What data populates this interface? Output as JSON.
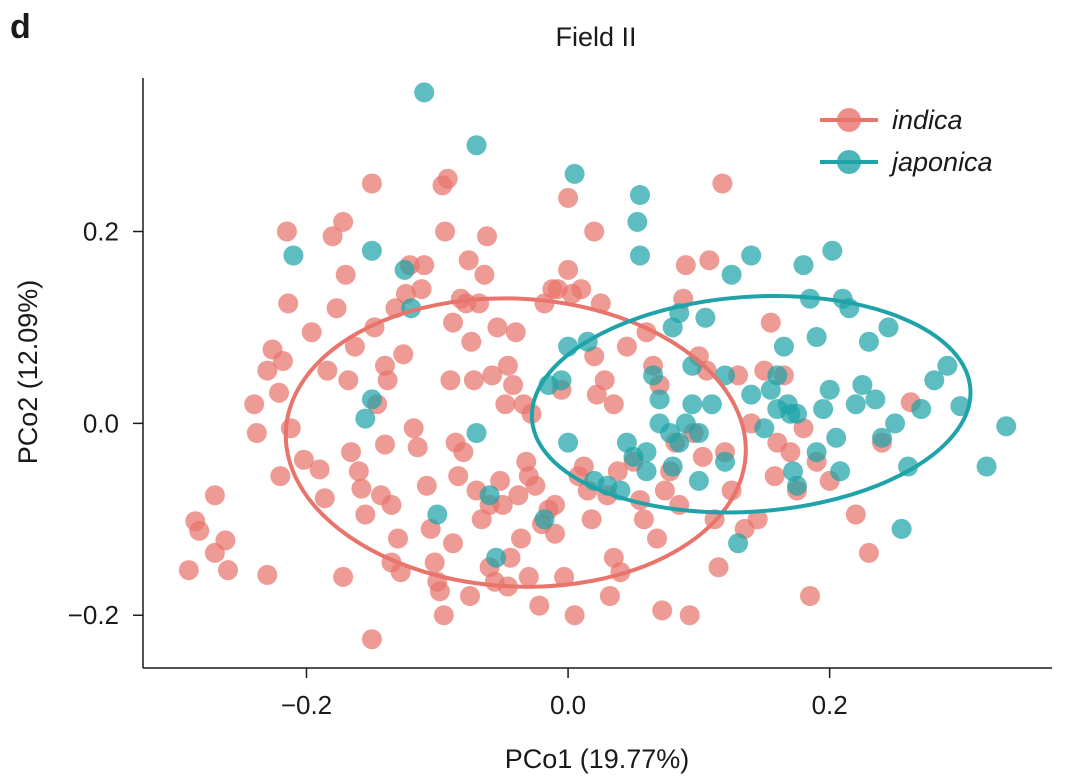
{
  "panel_label": "d",
  "chart_data": {
    "type": "scatter",
    "title": "Field II",
    "xlabel": "PCo1 (19.77%)",
    "ylabel": "PCo2 (12.09%)",
    "xlim": [
      -0.325,
      0.37
    ],
    "ylim": [
      -0.255,
      0.36
    ],
    "xticks": [
      -0.2,
      0.0,
      0.2
    ],
    "yticks": [
      -0.2,
      0.0,
      0.2
    ],
    "xtick_labels": [
      "−0.2",
      "0.0",
      "0.2"
    ],
    "ytick_labels": [
      "−0.2",
      "0.0",
      "0.2"
    ],
    "legend_position": "top-right",
    "series": [
      {
        "name": "indica",
        "color": "#e8746c",
        "ellipse": {
          "cx": -0.04,
          "cy": -0.02,
          "rx": 0.176,
          "ry": 0.15,
          "angle": 3
        },
        "points": [
          [
            -0.29,
            -0.153
          ],
          [
            -0.285,
            -0.102
          ],
          [
            -0.282,
            -0.112
          ],
          [
            -0.27,
            -0.135
          ],
          [
            -0.262,
            -0.122
          ],
          [
            -0.26,
            -0.153
          ],
          [
            -0.27,
            -0.075
          ],
          [
            -0.24,
            0.02
          ],
          [
            -0.238,
            -0.01
          ],
          [
            -0.23,
            0.055
          ],
          [
            -0.226,
            0.077
          ],
          [
            -0.221,
            0.032
          ],
          [
            -0.22,
            -0.055
          ],
          [
            -0.218,
            0.065
          ],
          [
            -0.215,
            0.2
          ],
          [
            -0.214,
            0.125
          ],
          [
            -0.212,
            -0.005
          ],
          [
            -0.23,
            -0.158
          ],
          [
            -0.202,
            -0.038
          ],
          [
            -0.196,
            0.095
          ],
          [
            -0.19,
            -0.048
          ],
          [
            -0.186,
            -0.078
          ],
          [
            -0.184,
            0.055
          ],
          [
            -0.18,
            0.195
          ],
          [
            -0.177,
            0.12
          ],
          [
            -0.172,
            0.21
          ],
          [
            -0.17,
            0.155
          ],
          [
            -0.168,
            0.045
          ],
          [
            -0.166,
            -0.03
          ],
          [
            -0.163,
            0.08
          ],
          [
            -0.16,
            -0.05
          ],
          [
            -0.158,
            -0.068
          ],
          [
            -0.155,
            -0.095
          ],
          [
            -0.172,
            -0.16
          ],
          [
            -0.15,
            0.25
          ],
          [
            -0.148,
            0.1
          ],
          [
            -0.146,
            0.02
          ],
          [
            -0.143,
            -0.075
          ],
          [
            -0.14,
            0.06
          ],
          [
            -0.138,
            0.045
          ],
          [
            -0.135,
            -0.085
          ],
          [
            -0.132,
            0.12
          ],
          [
            -0.13,
            -0.12
          ],
          [
            -0.128,
            -0.155
          ],
          [
            -0.126,
            0.072
          ],
          [
            -0.124,
            0.135
          ],
          [
            -0.121,
            0.165
          ],
          [
            -0.118,
            -0.005
          ],
          [
            -0.115,
            -0.025
          ],
          [
            -0.112,
            0.14
          ],
          [
            -0.11,
            0.165
          ],
          [
            -0.108,
            -0.065
          ],
          [
            -0.105,
            -0.11
          ],
          [
            -0.102,
            -0.145
          ],
          [
            -0.1,
            -0.165
          ],
          [
            -0.098,
            -0.175
          ],
          [
            -0.096,
            0.248
          ],
          [
            -0.094,
            0.2
          ],
          [
            -0.092,
            0.255
          ],
          [
            -0.09,
            0.045
          ],
          [
            -0.088,
            0.105
          ],
          [
            -0.086,
            -0.02
          ],
          [
            -0.084,
            -0.055
          ],
          [
            -0.082,
            0.13
          ],
          [
            -0.08,
            -0.03
          ],
          [
            -0.078,
            0.125
          ],
          [
            -0.076,
            0.17
          ],
          [
            -0.074,
            0.085
          ],
          [
            -0.072,
            0.045
          ],
          [
            -0.07,
            -0.07
          ],
          [
            -0.068,
            0.125
          ],
          [
            -0.066,
            -0.1
          ],
          [
            -0.064,
            0.155
          ],
          [
            -0.062,
            0.195
          ],
          [
            -0.06,
            -0.15
          ],
          [
            -0.058,
            0.05
          ],
          [
            -0.056,
            -0.165
          ],
          [
            -0.054,
            0.1
          ],
          [
            -0.052,
            -0.06
          ],
          [
            -0.05,
            -0.085
          ],
          [
            -0.048,
            0.02
          ],
          [
            -0.046,
            0.06
          ],
          [
            -0.044,
            -0.14
          ],
          [
            -0.042,
            0.04
          ],
          [
            -0.04,
            0.095
          ],
          [
            -0.038,
            -0.075
          ],
          [
            -0.036,
            -0.12
          ],
          [
            -0.034,
            0.02
          ],
          [
            -0.032,
            -0.04
          ],
          [
            -0.03,
            -0.055
          ],
          [
            -0.028,
            0.01
          ],
          [
            -0.025,
            -0.065
          ],
          [
            -0.022,
            -0.19
          ],
          [
            -0.02,
            -0.105
          ],
          [
            -0.018,
            0.125
          ],
          [
            -0.015,
            -0.09
          ],
          [
            -0.012,
            0.14
          ],
          [
            -0.01,
            -0.085
          ],
          [
            -0.008,
            0.14
          ],
          [
            -0.005,
            0.035
          ],
          [
            -0.003,
            -0.16
          ],
          [
            0.0,
            0.16
          ],
          [
            0.003,
            0.135
          ],
          [
            0.005,
            -0.2
          ],
          [
            0.008,
            -0.055
          ],
          [
            0.01,
            0.14
          ],
          [
            0.012,
            -0.045
          ],
          [
            0.015,
            -0.07
          ],
          [
            0.018,
            -0.1
          ],
          [
            0.02,
            0.07
          ],
          [
            0.022,
            0.03
          ],
          [
            0.025,
            0.125
          ],
          [
            0.028,
            0.045
          ],
          [
            0.03,
            -0.075
          ],
          [
            0.032,
            -0.18
          ],
          [
            0.035,
            0.02
          ],
          [
            0.038,
            -0.05
          ],
          [
            0.04,
            -0.155
          ],
          [
            -0.14,
            -0.022
          ],
          [
            -0.135,
            -0.145
          ],
          [
            -0.088,
            -0.125
          ],
          [
            -0.075,
            -0.18
          ],
          [
            -0.06,
            -0.085
          ],
          [
            -0.03,
            -0.16
          ],
          [
            0.0,
            0.235
          ],
          [
            0.02,
            0.2
          ],
          [
            0.045,
            0.08
          ],
          [
            0.05,
            -0.04
          ],
          [
            0.055,
            -0.08
          ],
          [
            0.058,
            -0.1
          ],
          [
            0.06,
            0.095
          ],
          [
            0.065,
            0.06
          ],
          [
            0.068,
            -0.12
          ],
          [
            0.07,
            0.04
          ],
          [
            0.074,
            -0.07
          ],
          [
            0.078,
            -0.05
          ],
          [
            0.082,
            -0.02
          ],
          [
            0.085,
            -0.085
          ],
          [
            0.088,
            0.13
          ],
          [
            0.09,
            0.165
          ],
          [
            0.093,
            -0.2
          ],
          [
            0.096,
            -0.01
          ],
          [
            0.1,
            0.07
          ],
          [
            0.103,
            -0.035
          ],
          [
            0.106,
            0.055
          ],
          [
            0.108,
            0.17
          ],
          [
            0.112,
            -0.1
          ],
          [
            0.115,
            -0.15
          ],
          [
            0.118,
            0.25
          ],
          [
            0.12,
            -0.03
          ],
          [
            0.125,
            -0.07
          ],
          [
            0.13,
            0.05
          ],
          [
            0.135,
            -0.11
          ],
          [
            0.14,
            0.0
          ],
          [
            0.145,
            -0.1
          ],
          [
            0.15,
            0.055
          ],
          [
            0.155,
            0.105
          ],
          [
            0.158,
            -0.055
          ],
          [
            0.16,
            -0.02
          ],
          [
            0.165,
            0.05
          ],
          [
            0.17,
            -0.03
          ],
          [
            0.175,
            -0.07
          ],
          [
            0.18,
            -0.005
          ],
          [
            0.185,
            -0.18
          ],
          [
            0.19,
            -0.04
          ],
          [
            0.2,
            -0.06
          ],
          [
            0.22,
            -0.095
          ],
          [
            0.23,
            -0.135
          ],
          [
            0.24,
            -0.02
          ],
          [
            0.262,
            0.022
          ],
          [
            -0.15,
            -0.225
          ],
          [
            -0.095,
            -0.2
          ],
          [
            0.072,
            -0.195
          ],
          [
            0.035,
            -0.14
          ],
          [
            -0.01,
            -0.115
          ],
          [
            -0.046,
            -0.17
          ]
        ]
      },
      {
        "name": "japonica",
        "color": "#1fa3a8",
        "ellipse": {
          "cx": 0.14,
          "cy": 0.02,
          "rx": 0.168,
          "ry": 0.112,
          "angle": -4
        },
        "points": [
          [
            -0.11,
            0.345
          ],
          [
            -0.07,
            0.29
          ],
          [
            -0.21,
            0.175
          ],
          [
            -0.15,
            0.18
          ],
          [
            -0.125,
            0.16
          ],
          [
            -0.12,
            0.12
          ],
          [
            -0.15,
            0.025
          ],
          [
            -0.155,
            0.005
          ],
          [
            -0.07,
            -0.01
          ],
          [
            -0.1,
            -0.095
          ],
          [
            -0.06,
            -0.075
          ],
          [
            -0.055,
            -0.14
          ],
          [
            -0.018,
            -0.1
          ],
          [
            0.005,
            0.26
          ],
          [
            0.055,
            0.238
          ],
          [
            0.053,
            0.21
          ],
          [
            0.055,
            0.175
          ],
          [
            0.0,
            0.08
          ],
          [
            0.015,
            0.085
          ],
          [
            -0.015,
            0.04
          ],
          [
            0.0,
            -0.02
          ],
          [
            0.02,
            -0.06
          ],
          [
            0.04,
            -0.07
          ],
          [
            0.05,
            -0.035
          ],
          [
            0.06,
            -0.03
          ],
          [
            0.065,
            0.05
          ],
          [
            0.07,
            0.025
          ],
          [
            0.08,
            0.1
          ],
          [
            0.085,
            0.115
          ],
          [
            0.09,
            0.0
          ],
          [
            0.095,
            0.02
          ],
          [
            0.1,
            -0.01
          ],
          [
            0.105,
            0.11
          ],
          [
            0.11,
            0.02
          ],
          [
            0.12,
            0.05
          ],
          [
            0.125,
            0.155
          ],
          [
            0.13,
            -0.125
          ],
          [
            0.14,
            0.175
          ],
          [
            0.15,
            -0.005
          ],
          [
            0.155,
            0.035
          ],
          [
            0.16,
            0.05
          ],
          [
            0.165,
            0.08
          ],
          [
            0.168,
            0.02
          ],
          [
            0.17,
            0.01
          ],
          [
            0.172,
            -0.05
          ],
          [
            0.175,
            -0.065
          ],
          [
            0.18,
            0.165
          ],
          [
            0.185,
            0.13
          ],
          [
            0.19,
            0.09
          ],
          [
            0.195,
            0.015
          ],
          [
            0.2,
            0.035
          ],
          [
            0.202,
            0.18
          ],
          [
            0.205,
            -0.015
          ],
          [
            0.208,
            -0.05
          ],
          [
            0.21,
            0.13
          ],
          [
            0.215,
            0.12
          ],
          [
            0.22,
            0.02
          ],
          [
            0.225,
            0.04
          ],
          [
            0.23,
            0.085
          ],
          [
            0.235,
            0.025
          ],
          [
            0.24,
            -0.015
          ],
          [
            0.245,
            0.1
          ],
          [
            0.25,
            0.0
          ],
          [
            0.255,
            -0.11
          ],
          [
            0.26,
            -0.045
          ],
          [
            0.27,
            0.015
          ],
          [
            0.28,
            0.045
          ],
          [
            0.29,
            0.06
          ],
          [
            0.3,
            0.018
          ],
          [
            0.32,
            -0.045
          ],
          [
            0.335,
            -0.003
          ],
          [
            0.085,
            -0.02
          ],
          [
            0.078,
            -0.01
          ],
          [
            0.1,
            -0.06
          ],
          [
            0.06,
            -0.05
          ],
          [
            0.045,
            -0.02
          ],
          [
            0.03,
            -0.065
          ],
          [
            -0.005,
            0.045
          ],
          [
            0.14,
            0.03
          ],
          [
            0.12,
            -0.04
          ],
          [
            0.16,
            0.015
          ],
          [
            0.19,
            -0.03
          ],
          [
            0.175,
            0.01
          ],
          [
            0.08,
            -0.045
          ],
          [
            0.07,
            0.0
          ],
          [
            0.095,
            0.06
          ]
        ]
      }
    ]
  }
}
